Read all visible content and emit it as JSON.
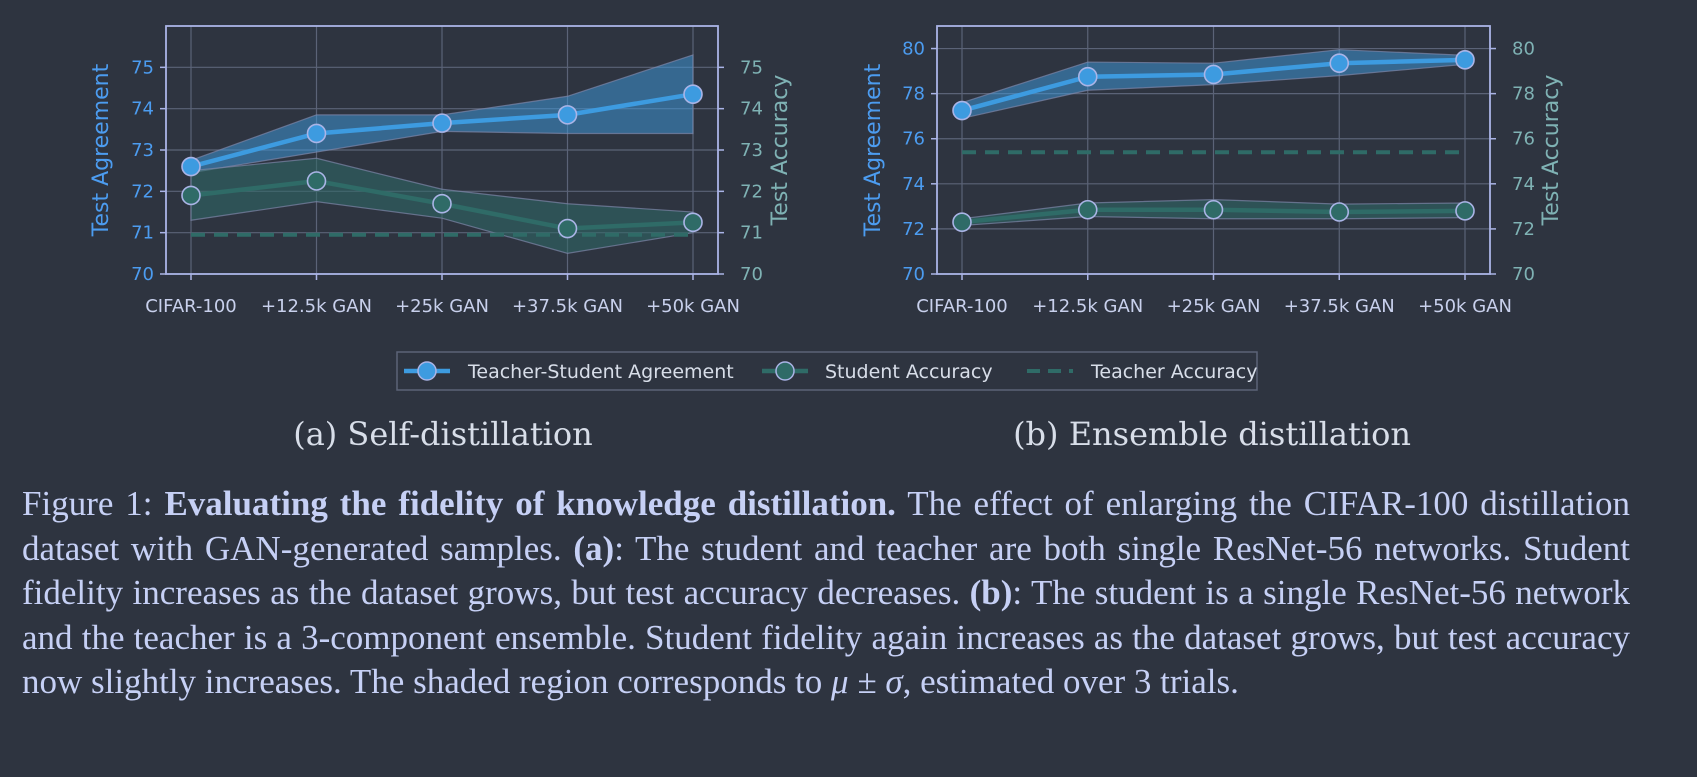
{
  "colors": {
    "background": "#2e3440",
    "agreement": "#3d9be0",
    "student": "#2f6b67",
    "teacher": "#2f6b67",
    "frame": "#aab4e6",
    "grid": "#5b6377",
    "agreement_axis_text": "#4c9cf0",
    "accuracy_axis_text": "#7fb2b4"
  },
  "chart_data": [
    {
      "type": "line",
      "subcaption": "(a) Self-distillation",
      "categories": [
        "CIFAR-100",
        "+12.5k GAN",
        "+25k GAN",
        "+37.5k GAN",
        "+50k GAN"
      ],
      "ylabel_left": "Test Agreement",
      "ylabel_right": "Test Accuracy",
      "ylim": [
        70,
        76
      ],
      "yticks": [
        70,
        71,
        72,
        73,
        74,
        75
      ],
      "grid": true,
      "series": [
        {
          "name": "Teacher-Student Agreement",
          "values": [
            72.6,
            73.4,
            73.65,
            73.85,
            74.35
          ],
          "upper": [
            72.75,
            73.85,
            73.85,
            74.3,
            75.3
          ],
          "lower": [
            72.45,
            72.95,
            73.45,
            73.4,
            73.4
          ]
        },
        {
          "name": "Student Accuracy",
          "values": [
            71.9,
            72.25,
            71.7,
            71.1,
            71.25
          ],
          "upper": [
            72.5,
            72.8,
            72.05,
            71.7,
            71.5
          ],
          "lower": [
            71.3,
            71.75,
            71.35,
            70.5,
            71.0
          ]
        },
        {
          "name": "Teacher Accuracy",
          "values": [
            70.95,
            70.95,
            70.95,
            70.95,
            70.95
          ]
        }
      ]
    },
    {
      "type": "line",
      "subcaption": "(b) Ensemble distillation",
      "categories": [
        "CIFAR-100",
        "+12.5k GAN",
        "+25k GAN",
        "+37.5k GAN",
        "+50k GAN"
      ],
      "ylabel_left": "Test Agreement",
      "ylabel_right": "Test Accuracy",
      "ylim": [
        70,
        81
      ],
      "yticks": [
        70,
        72,
        74,
        76,
        78,
        80
      ],
      "grid": true,
      "series": [
        {
          "name": "Teacher-Student Agreement",
          "values": [
            77.25,
            78.75,
            78.85,
            79.35,
            79.5
          ],
          "upper": [
            77.6,
            79.4,
            79.35,
            79.95,
            79.7
          ],
          "lower": [
            76.9,
            78.15,
            78.4,
            78.8,
            79.3
          ]
        },
        {
          "name": "Student Accuracy",
          "values": [
            72.3,
            72.85,
            72.85,
            72.75,
            72.8
          ],
          "upper": [
            72.45,
            73.15,
            73.3,
            73.1,
            73.15
          ],
          "lower": [
            72.15,
            72.55,
            72.45,
            72.45,
            72.5
          ]
        },
        {
          "name": "Teacher Accuracy",
          "values": [
            75.4,
            75.4,
            75.4,
            75.4,
            75.4
          ]
        }
      ]
    }
  ],
  "legend": {
    "items": [
      "Teacher-Student Agreement",
      "Student Accuracy",
      "Teacher Accuracy"
    ],
    "placement": "bottom-center"
  },
  "caption": {
    "label": "Figure 1: ",
    "bold_title": "Evaluating the fidelity of knowledge distillation.",
    "part1": " The effect of enlarging the CIFAR-100 distillation dataset with GAN-generated samples. ",
    "a_marker": "(a)",
    "part2": ": The student and teacher are both single ResNet-56 networks. Student fidelity increases as the dataset grows, but test accuracy decreases. ",
    "b_marker": "(b)",
    "part3": ": The student is a single ResNet-56 network and the teacher is a 3-component ensemble. Student fidelity again increases as the dataset grows, but test accuracy now slightly increases. The shaded region corresponds to ",
    "math": "μ ± σ",
    "part4": ", estimated over 3 trials."
  }
}
